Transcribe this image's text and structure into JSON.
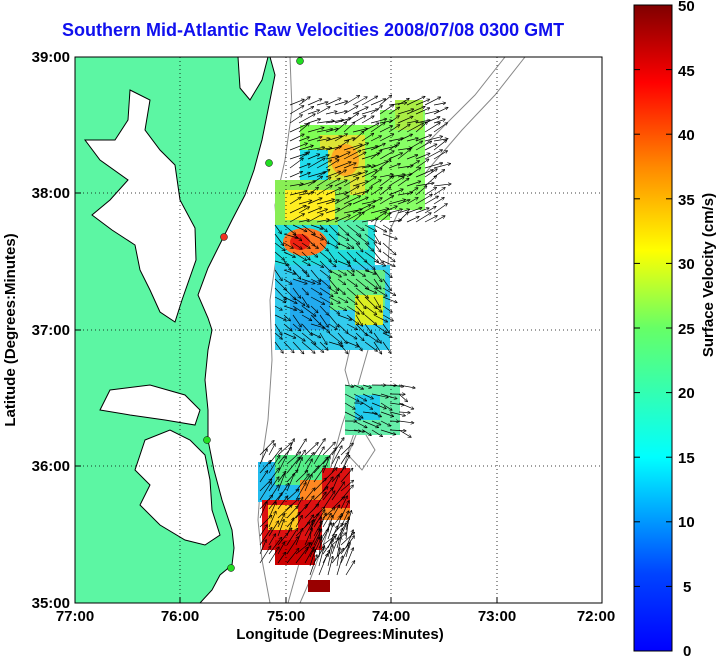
{
  "title": "Southern Mid-Atlantic Raw Velocities 2008/07/08 0300 GMT",
  "map": {
    "x_label": "Longitude (Degrees:Minutes)",
    "y_label": "Latitude (Degrees:Minutes)",
    "lon_range": [
      -77,
      -72
    ],
    "lat_range": [
      35,
      39
    ],
    "lon_ticks": [
      "77:00",
      "76:00",
      "75:00",
      "74:00",
      "73:00",
      "72:00"
    ],
    "lat_ticks": [
      "39:00",
      "38:00",
      "37:00",
      "36:00",
      "35:00"
    ],
    "grid": "dotted",
    "colors": {
      "land": "#5cf6a3",
      "coastline": "#000000",
      "bathymetry": "#888888",
      "vectors": "#000000",
      "stations": "#22dd22",
      "station_alert": "#ee3322"
    }
  },
  "colorbar": {
    "label": "Surface Velocity (cm/s)",
    "ticks": [
      "50",
      "45",
      "40",
      "35",
      "30",
      "25",
      "20",
      "15",
      "10",
      "5",
      "0"
    ],
    "range": [
      0,
      50
    ],
    "colormap": "jet"
  }
}
